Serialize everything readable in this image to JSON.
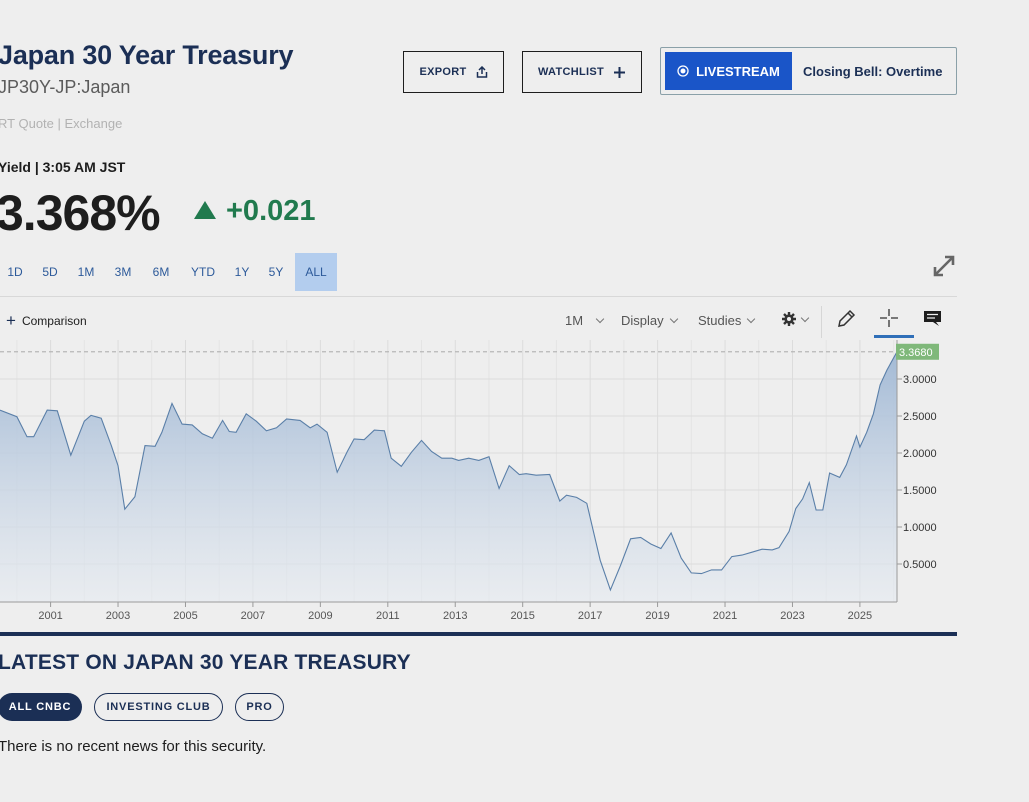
{
  "security": {
    "title": "Japan 30 Year Treasury",
    "subtitle": "JP30Y-JP:Japan",
    "quote_type": "RT Quote | Exchange"
  },
  "header_buttons": {
    "export_label": "EXPORT",
    "watchlist_label": "WATCHLIST",
    "livestream_label": "LIVESTREAM",
    "livestream_show": "Closing Bell: Overtime"
  },
  "quote": {
    "yield_label": "Yield | 3:05 AM JST",
    "last_price": "3.368%",
    "change": "+0.021",
    "change_direction": "up",
    "change_color": "#217a4e"
  },
  "time_ranges": [
    "1D",
    "5D",
    "1M",
    "3M",
    "6M",
    "YTD",
    "1Y",
    "5Y",
    "ALL"
  ],
  "active_range": "ALL",
  "chart_toolbar": {
    "comparison_label": "Comparison",
    "interval_label": "1M",
    "display_label": "Display",
    "studies_label": "Studies",
    "settings_icon": "gear-icon",
    "draw_icon": "pencil-icon",
    "crosshair_icon": "crosshair-icon",
    "comment_icon": "comment-icon"
  },
  "chart_data": {
    "type": "area",
    "x_unit": "year",
    "x": [
      1999.5,
      2000.0,
      2000.3,
      2000.5,
      2000.9,
      2001.2,
      2001.6,
      2002.0,
      2002.2,
      2002.5,
      2002.8,
      2003.0,
      2003.2,
      2003.5,
      2003.8,
      2004.1,
      2004.3,
      2004.6,
      2004.9,
      2005.2,
      2005.5,
      2005.8,
      2006.1,
      2006.3,
      2006.5,
      2006.8,
      2007.1,
      2007.4,
      2007.7,
      2008.0,
      2008.4,
      2008.7,
      2008.9,
      2009.2,
      2009.5,
      2009.8,
      2010.0,
      2010.3,
      2010.6,
      2010.9,
      2011.1,
      2011.4,
      2011.7,
      2012.0,
      2012.3,
      2012.6,
      2012.9,
      2013.1,
      2013.4,
      2013.7,
      2014.0,
      2014.3,
      2014.6,
      2014.9,
      2015.1,
      2015.4,
      2015.8,
      2016.1,
      2016.3,
      2016.6,
      2016.9,
      2017.3,
      2017.6,
      2017.9,
      2018.2,
      2018.5,
      2018.8,
      2019.1,
      2019.4,
      2019.7,
      2020.0,
      2020.3,
      2020.6,
      2020.9,
      2021.2,
      2021.5,
      2021.8,
      2022.1,
      2022.4,
      2022.6,
      2022.9,
      2023.1,
      2023.3,
      2023.5,
      2023.7,
      2023.9,
      2024.1,
      2024.4,
      2024.6,
      2024.9,
      2025.0,
      2025.2,
      2025.4,
      2025.6,
      2025.8,
      2026.1
    ],
    "values": [
      2.58,
      2.49,
      2.22,
      2.22,
      2.58,
      2.57,
      1.97,
      2.43,
      2.51,
      2.47,
      2.1,
      1.83,
      1.24,
      1.41,
      2.1,
      2.09,
      2.28,
      2.67,
      2.39,
      2.38,
      2.26,
      2.2,
      2.44,
      2.29,
      2.28,
      2.53,
      2.43,
      2.3,
      2.34,
      2.46,
      2.44,
      2.34,
      2.39,
      2.28,
      1.74,
      2.02,
      2.19,
      2.18,
      2.31,
      2.3,
      1.93,
      1.82,
      2.01,
      2.17,
      2.02,
      1.93,
      1.93,
      1.9,
      1.93,
      1.9,
      1.95,
      1.52,
      1.83,
      1.71,
      1.72,
      1.7,
      1.71,
      1.35,
      1.43,
      1.4,
      1.32,
      0.55,
      0.15,
      0.48,
      0.84,
      0.86,
      0.77,
      0.71,
      0.92,
      0.58,
      0.38,
      0.37,
      0.42,
      0.42,
      0.6,
      0.62,
      0.66,
      0.7,
      0.69,
      0.72,
      0.94,
      1.25,
      1.38,
      1.6,
      1.23,
      1.23,
      1.73,
      1.67,
      1.84,
      2.23,
      2.08,
      2.28,
      2.53,
      2.92,
      3.12,
      3.368
    ],
    "x_tick_labels": [
      "2001",
      "2003",
      "2005",
      "2007",
      "2009",
      "2011",
      "2013",
      "2015",
      "2017",
      "2019",
      "2021",
      "2023",
      "2025"
    ],
    "y_tick_labels": [
      "0.5000",
      "1.0000",
      "1.5000",
      "2.0000",
      "2.5000",
      "3.0000"
    ],
    "last_value_label": "3.3680",
    "ylim": [
      0,
      3.5
    ],
    "grid": true,
    "line_color": "#5a7fa8",
    "fill_color": "#a9bfda",
    "last_label_color": "#7fb87a"
  },
  "news": {
    "heading": "LATEST ON JAPAN 30 YEAR TREASURY",
    "tabs": [
      "ALL CNBC",
      "INVESTING CLUB",
      "PRO"
    ],
    "active_tab": "ALL CNBC",
    "empty_message": "There is no recent news for this security."
  }
}
